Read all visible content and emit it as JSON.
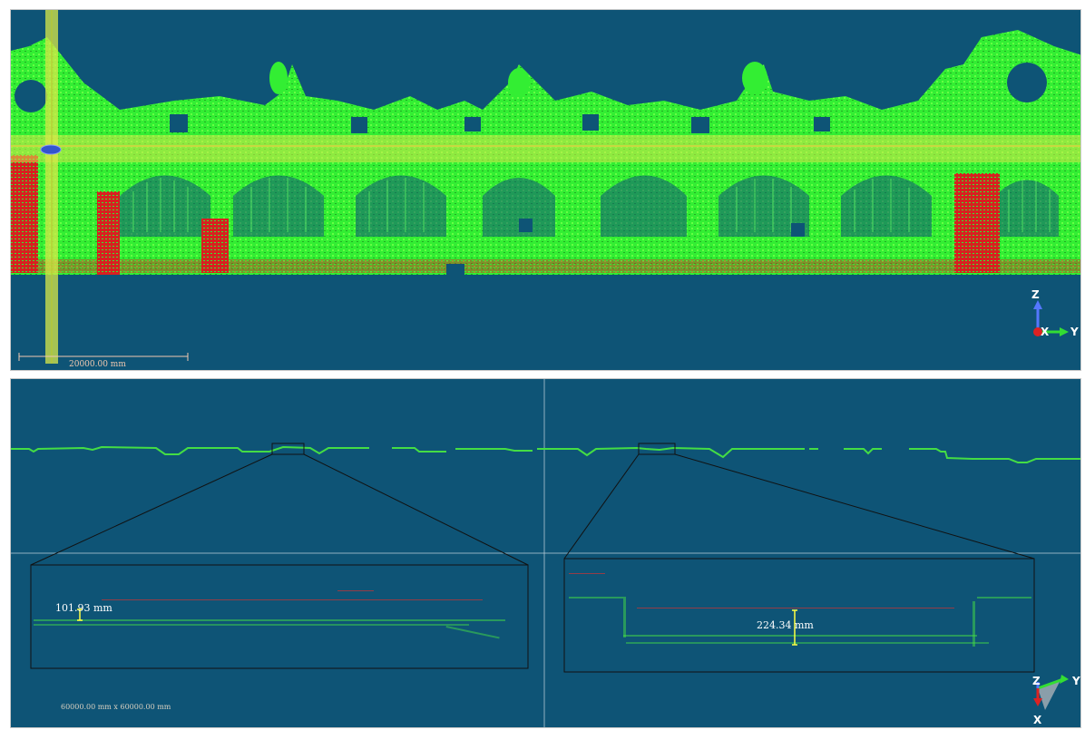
{
  "top_view": {
    "scale_bar_label": "20000.00 mm",
    "axes": {
      "up": "Z",
      "right": "Y",
      "center": "X"
    }
  },
  "bottom_view": {
    "measurement_left": "101.93 mm",
    "measurement_right": "224.34 mm",
    "extent_label": "60000.00 mm x 60000.00 mm",
    "axes": {
      "up": "Z",
      "right": "Y",
      "down": "X"
    }
  },
  "colors": {
    "background": "#0e5476",
    "point_green": "#33ff33",
    "point_red": "#dd2222",
    "selection_band": "#d8e84a",
    "measure_yellow": "#ffff44"
  }
}
